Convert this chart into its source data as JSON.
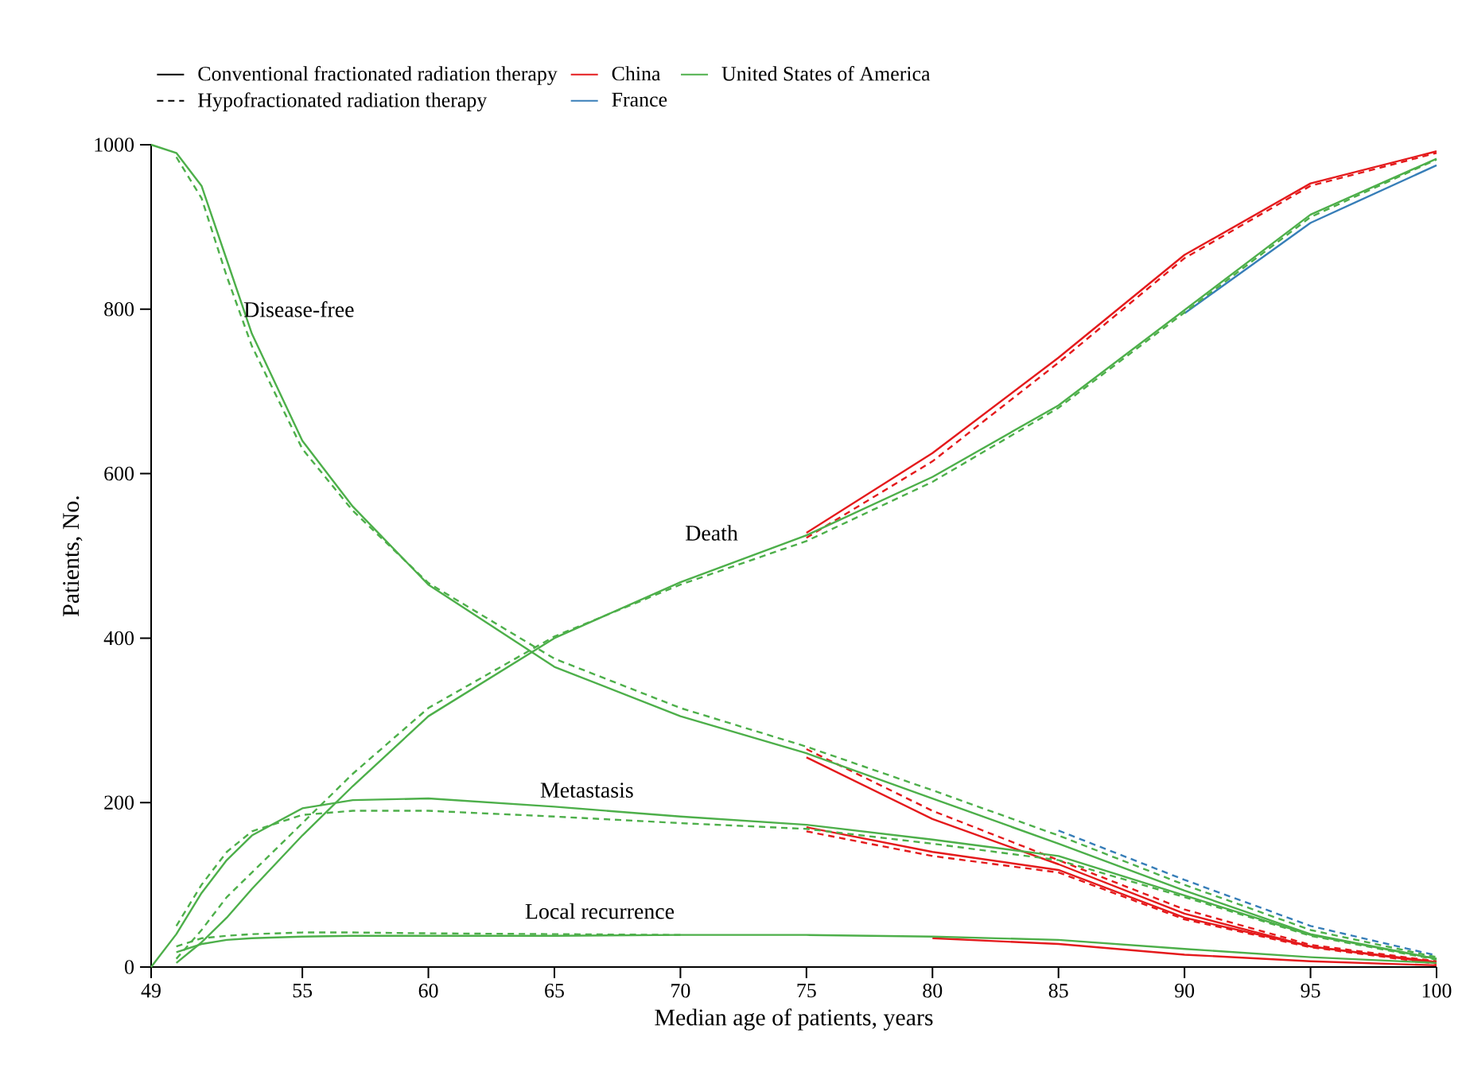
{
  "chart_data": {
    "type": "line",
    "xlabel": "Median age of patients, years",
    "ylabel": "Patients, No.",
    "x": [
      49,
      50,
      51,
      52,
      53,
      55,
      57,
      60,
      65,
      70,
      75,
      80,
      85,
      90,
      95,
      100
    ],
    "xlim": [
      49,
      100
    ],
    "xticks": [
      49,
      55,
      60,
      65,
      70,
      75,
      80,
      85,
      90,
      95,
      100
    ],
    "ylim": [
      0,
      1000
    ],
    "yticks": [
      0,
      200,
      400,
      600,
      800,
      1000
    ],
    "grid": false,
    "legend": "top",
    "marker": "none",
    "annotations": [
      "Disease-free",
      "Death",
      "Metastasis",
      "Local recurrence"
    ],
    "series": [
      {
        "name": "Conventional fractionated radiation therapy",
        "color": "#000000",
        "line_style": "solid",
        "values": [
          null,
          null,
          null,
          null,
          null,
          null,
          null,
          null,
          null,
          null,
          null,
          null,
          null,
          null,
          null,
          null
        ]
      },
      {
        "name": "China",
        "color": "#e41a1c",
        "line_style": "solid",
        "values": [
          null,
          null,
          null,
          null,
          null,
          null,
          null,
          null,
          null,
          null,
          null,
          null,
          null,
          null,
          null,
          null
        ]
      },
      {
        "name": "United States of America",
        "color": "#4daf4a",
        "line_style": "solid",
        "values": [
          null,
          null,
          null,
          null,
          null,
          null,
          null,
          null,
          null,
          null,
          null,
          null,
          null,
          null,
          null,
          null
        ]
      },
      {
        "name": "Hypofractionated radiation therapy",
        "color": "#000000",
        "line_style": "dashed",
        "values": [
          null,
          null,
          null,
          null,
          null,
          null,
          null,
          null,
          null,
          null,
          null,
          null,
          null,
          null,
          null,
          null
        ]
      },
      {
        "name": "France",
        "color": "#377eb8",
        "line_style": "solid",
        "values": [
          null,
          null,
          null,
          null,
          null,
          null,
          null,
          null,
          null,
          null,
          null,
          null,
          null,
          null,
          null,
          null
        ]
      },
      {
        "color": "#377eb8",
        "line_style": "dashed",
        "values": [
          null,
          null,
          null,
          null,
          null,
          null,
          null,
          null,
          null,
          null,
          null,
          null,
          166,
          106,
          50,
          14
        ]
      },
      {
        "color": "#377eb8",
        "line_style": "solid",
        "values": [
          null,
          null,
          null,
          null,
          null,
          null,
          null,
          null,
          null,
          null,
          null,
          null,
          null,
          795,
          905,
          975
        ]
      },
      {
        "color": "#e41a1c",
        "line_style": "solid",
        "values": [
          null,
          null,
          null,
          null,
          null,
          null,
          null,
          null,
          null,
          null,
          255,
          180,
          125,
          65,
          25,
          6
        ]
      },
      {
        "color": "#e41a1c",
        "line_style": "dashed",
        "values": [
          null,
          null,
          null,
          null,
          null,
          null,
          null,
          null,
          null,
          null,
          265,
          190,
          130,
          70,
          27,
          7
        ]
      },
      {
        "color": "#e41a1c",
        "line_style": "solid",
        "values": [
          null,
          null,
          null,
          null,
          null,
          null,
          null,
          null,
          null,
          null,
          528,
          625,
          741,
          866,
          953,
          992
        ]
      },
      {
        "color": "#e41a1c",
        "line_style": "dashed",
        "values": [
          null,
          null,
          null,
          null,
          null,
          null,
          null,
          null,
          null,
          null,
          522,
          615,
          735,
          862,
          950,
          990
        ]
      },
      {
        "color": "#e41a1c",
        "line_style": "solid",
        "values": [
          null,
          null,
          null,
          null,
          null,
          null,
          null,
          null,
          null,
          null,
          170,
          140,
          118,
          60,
          25,
          5
        ]
      },
      {
        "color": "#e41a1c",
        "line_style": "dashed",
        "values": [
          null,
          null,
          null,
          null,
          null,
          null,
          null,
          null,
          null,
          null,
          165,
          135,
          115,
          58,
          24,
          4
        ]
      },
      {
        "color": "#e41a1c",
        "line_style": "solid",
        "values": [
          null,
          null,
          null,
          null,
          null,
          null,
          null,
          null,
          null,
          null,
          null,
          35,
          28,
          15,
          7,
          2
        ]
      },
      {
        "color": "#4daf4a",
        "line_style": "solid",
        "values": [
          1000,
          990,
          950,
          860,
          770,
          640,
          560,
          465,
          365,
          305,
          260,
          205,
          150,
          93,
          40,
          10
        ]
      },
      {
        "color": "#4daf4a",
        "line_style": "dashed",
        "values": [
          null,
          985,
          935,
          840,
          755,
          630,
          555,
          467,
          375,
          315,
          268,
          215,
          160,
          100,
          45,
          12
        ]
      },
      {
        "color": "#4daf4a",
        "line_style": "solid",
        "values": [
          null,
          5,
          30,
          60,
          95,
          160,
          220,
          305,
          400,
          468,
          525,
          596,
          683,
          799,
          915,
          983
        ]
      },
      {
        "color": "#4daf4a",
        "line_style": "dashed",
        "values": [
          null,
          10,
          45,
          85,
          115,
          175,
          235,
          315,
          402,
          465,
          518,
          590,
          680,
          796,
          912,
          982
        ]
      },
      {
        "color": "#4daf4a",
        "line_style": "solid",
        "values": [
          0,
          40,
          90,
          130,
          160,
          193,
          203,
          205,
          195,
          183,
          173,
          155,
          135,
          87,
          39,
          10
        ]
      },
      {
        "color": "#4daf4a",
        "line_style": "dashed",
        "values": [
          null,
          50,
          100,
          140,
          165,
          185,
          190,
          190,
          183,
          175,
          168,
          150,
          130,
          85,
          38,
          9
        ]
      },
      {
        "color": "#4daf4a",
        "line_style": "solid",
        "values": [
          null,
          18,
          28,
          33,
          35,
          37,
          38,
          38,
          38,
          39,
          39,
          37,
          33,
          22,
          12,
          5
        ]
      },
      {
        "color": "#4daf4a",
        "line_style": "dashed",
        "values": [
          null,
          25,
          35,
          38,
          40,
          42,
          42,
          41,
          40,
          39,
          null,
          null,
          null,
          null,
          null,
          null
        ]
      }
    ]
  }
}
